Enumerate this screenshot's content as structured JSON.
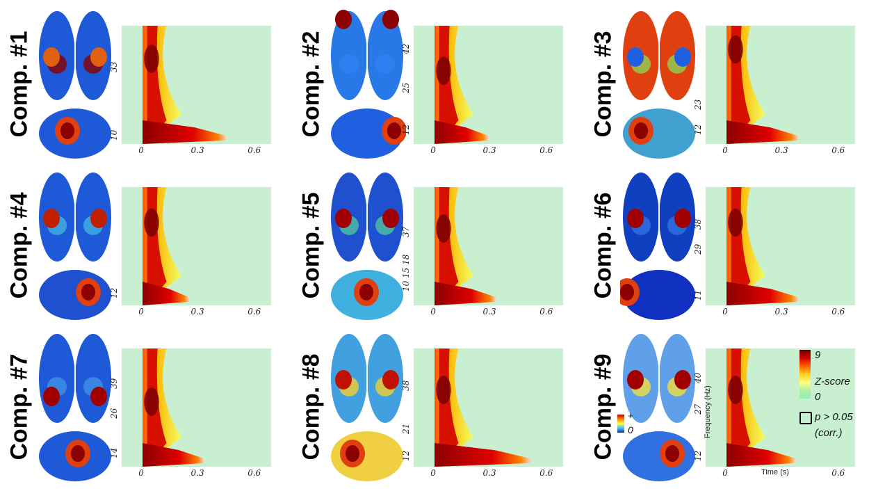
{
  "panels": [
    {
      "label": "Comp. #1",
      "yticks": [
        "33",
        "10"
      ],
      "xticks": [
        "0",
        "0.3",
        "0.6"
      ]
    },
    {
      "label": "Comp. #2",
      "yticks": [
        "42",
        "25",
        "12"
      ],
      "xticks": [
        "0",
        "0.3",
        "0.6"
      ]
    },
    {
      "label": "Comp. #3",
      "yticks": [
        "23",
        "12"
      ],
      "xticks": [
        "0",
        "0.3",
        "0.6"
      ]
    },
    {
      "label": "Comp. #4",
      "yticks": [
        "12"
      ],
      "xticks": [
        "0",
        "0.3",
        "0.6"
      ]
    },
    {
      "label": "Comp. #5",
      "yticks": [
        "37",
        "10 15 18"
      ],
      "xticks": [
        "0",
        "0.3",
        "0.6"
      ]
    },
    {
      "label": "Comp. #6",
      "yticks": [
        "38",
        "29",
        "11"
      ],
      "xticks": [
        "0",
        "0.3",
        "0.6"
      ]
    },
    {
      "label": "Comp. #7",
      "yticks": [
        "39",
        "26",
        "14"
      ],
      "xticks": [
        "0",
        "0.3",
        "0.6"
      ]
    },
    {
      "label": "Comp. #8",
      "yticks": [
        "38",
        "21",
        "12"
      ],
      "xticks": [
        "0",
        "0.3",
        "0.6"
      ]
    },
    {
      "label": "Comp. #9",
      "yticks": [
        "40",
        "27",
        "12"
      ],
      "xticks": [
        "0",
        "0.6"
      ]
    }
  ],
  "axes": {
    "ylabel": "Frequency (Hz)",
    "xlabel": "Time (s)"
  },
  "brain_colorbar": {
    "plus": "+",
    "zero": "0"
  },
  "zscore_legend": {
    "max": "9",
    "title": "Z-score",
    "min": "0"
  },
  "significance_legend": {
    "line1": "p > 0.05",
    "line2": "(corr.)"
  },
  "colors": {
    "background": "#c8f0d0",
    "low": "#2060e0",
    "high": "#8b0000"
  }
}
